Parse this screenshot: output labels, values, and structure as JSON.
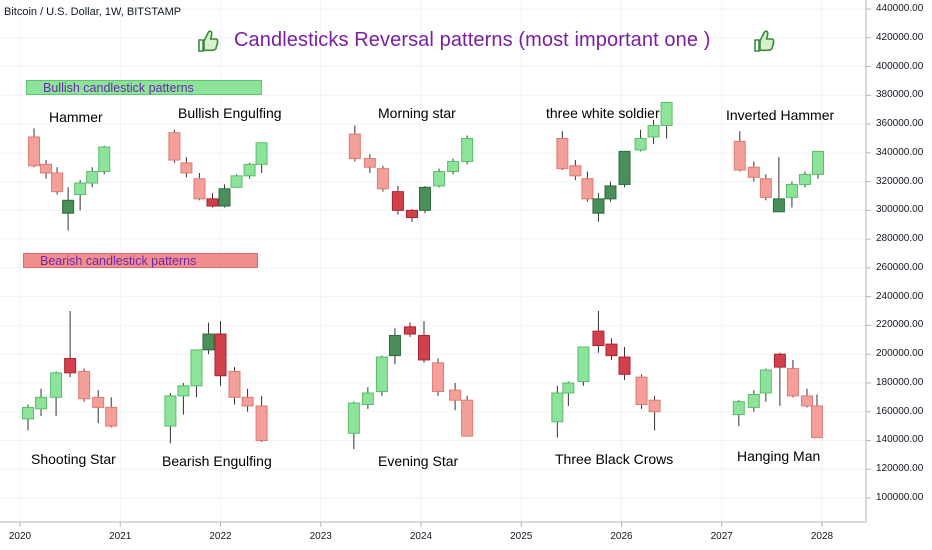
{
  "header": {
    "symbol": "Bitcoin / U.S. Dollar, 1W, BITSTAMP",
    "title": "Candlesticks Reversal patterns (most important one )"
  },
  "icons": {
    "left": "thumbs-up-icon",
    "right": "thumbs-up-icon"
  },
  "colors": {
    "bull_light": "#8ee39a",
    "bull_dark": "#4a8f5a",
    "bear_light": "#f4a09a",
    "bear_dark": "#d2414b",
    "wick": "#333333",
    "title": "#7b1fa2",
    "banner_text": "#6a2bb0"
  },
  "banners": {
    "bullish": "Bullish candlestick patterns",
    "bearish": "Bearish candlestick patterns"
  },
  "chart_data": {
    "type": "candlestick",
    "ylim": [
      82000,
      446000
    ],
    "y_ticks": [
      100000,
      120000,
      140000,
      160000,
      180000,
      200000,
      220000,
      240000,
      260000,
      280000,
      300000,
      320000,
      340000,
      360000,
      380000,
      400000,
      420000,
      440000
    ],
    "y_tick_labels": [
      "100000.00",
      "120000.00",
      "140000.00",
      "160000.00",
      "180000.00",
      "200000.00",
      "220000.00",
      "240000.00",
      "260000.00",
      "280000.00",
      "300000.00",
      "320000.00",
      "340000.00",
      "360000.00",
      "380000.00",
      "400000.00",
      "420000.00",
      "440000.00"
    ],
    "x_ticks": [
      "2020",
      "2021",
      "2022",
      "2023",
      "2024",
      "2025",
      "2026",
      "2027",
      "2028"
    ],
    "x_tick_years": [
      2020.0,
      2021.0,
      2022.0,
      2023.0,
      2024.0,
      2025.0,
      2026.0,
      2027.0,
      2028.0
    ],
    "patterns": [
      {
        "name": "Hammer",
        "group": "bullish",
        "candles": [
          {
            "t": 2020.14,
            "o": 351000,
            "h": 357000,
            "l": 330000,
            "c": 331000,
            "k": "bear_light"
          },
          {
            "t": 2020.26,
            "o": 332000,
            "h": 335000,
            "l": 322000,
            "c": 326000,
            "k": "bear_light"
          },
          {
            "t": 2020.37,
            "o": 326000,
            "h": 330000,
            "l": 311000,
            "c": 313000,
            "k": "bear_light"
          },
          {
            "t": 2020.48,
            "o": 298000,
            "h": 316000,
            "l": 286000,
            "c": 307000,
            "k": "bull_dark"
          },
          {
            "t": 2020.6,
            "o": 311000,
            "h": 321000,
            "l": 300000,
            "c": 319000,
            "k": "bull_light"
          },
          {
            "t": 2020.72,
            "o": 319000,
            "h": 330000,
            "l": 316000,
            "c": 327000,
            "k": "bull_light"
          },
          {
            "t": 2020.84,
            "o": 327000,
            "h": 345000,
            "l": 325000,
            "c": 344000,
            "k": "bull_light"
          }
        ]
      },
      {
        "name": "Bullish Engulfing",
        "group": "bullish",
        "candles": [
          {
            "t": 2021.54,
            "o": 354000,
            "h": 356000,
            "l": 333000,
            "c": 335000,
            "k": "bear_light"
          },
          {
            "t": 2021.66,
            "o": 333000,
            "h": 337000,
            "l": 323000,
            "c": 326000,
            "k": "bear_light"
          },
          {
            "t": 2021.79,
            "o": 322000,
            "h": 326000,
            "l": 307000,
            "c": 308000,
            "k": "bear_light"
          },
          {
            "t": 2021.92,
            "o": 308000,
            "h": 312000,
            "l": 302000,
            "c": 303000,
            "k": "bear_dark"
          },
          {
            "t": 2022.04,
            "o": 303000,
            "h": 318000,
            "l": 302000,
            "c": 315000,
            "k": "bull_dark"
          },
          {
            "t": 2022.16,
            "o": 316000,
            "h": 325000,
            "l": 316000,
            "c": 324000,
            "k": "bull_light"
          },
          {
            "t": 2022.29,
            "o": 324000,
            "h": 333000,
            "l": 322000,
            "c": 332000,
            "k": "bull_light"
          },
          {
            "t": 2022.41,
            "o": 332000,
            "h": 347000,
            "l": 326000,
            "c": 347000,
            "k": "bull_light"
          }
        ]
      },
      {
        "name": "Morning star",
        "group": "bullish",
        "candles": [
          {
            "t": 2023.34,
            "o": 353000,
            "h": 359000,
            "l": 334000,
            "c": 336000,
            "k": "bear_light"
          },
          {
            "t": 2023.49,
            "o": 336000,
            "h": 339000,
            "l": 326000,
            "c": 330000,
            "k": "bear_light"
          },
          {
            "t": 2023.62,
            "o": 329000,
            "h": 331000,
            "l": 313000,
            "c": 315000,
            "k": "bear_light"
          },
          {
            "t": 2023.77,
            "o": 313000,
            "h": 317000,
            "l": 297000,
            "c": 300000,
            "k": "bear_dark"
          },
          {
            "t": 2023.91,
            "o": 300000,
            "h": 301000,
            "l": 292000,
            "c": 295000,
            "k": "bear_dark"
          },
          {
            "t": 2024.04,
            "o": 300000,
            "h": 317000,
            "l": 298000,
            "c": 316000,
            "k": "bull_dark"
          },
          {
            "t": 2024.18,
            "o": 317000,
            "h": 329000,
            "l": 316000,
            "c": 327000,
            "k": "bull_light"
          },
          {
            "t": 2024.32,
            "o": 327000,
            "h": 336000,
            "l": 325000,
            "c": 334000,
            "k": "bull_light"
          },
          {
            "t": 2024.46,
            "o": 334000,
            "h": 352000,
            "l": 332000,
            "c": 350000,
            "k": "bull_light"
          }
        ]
      },
      {
        "name": "three white soldier",
        "group": "bullish",
        "candles": [
          {
            "t": 2025.41,
            "o": 350000,
            "h": 355000,
            "l": 328000,
            "c": 329000,
            "k": "bear_light"
          },
          {
            "t": 2025.54,
            "o": 331000,
            "h": 335000,
            "l": 321000,
            "c": 324000,
            "k": "bear_light"
          },
          {
            "t": 2025.66,
            "o": 322000,
            "h": 327000,
            "l": 306000,
            "c": 308000,
            "k": "bear_light"
          },
          {
            "t": 2025.77,
            "o": 298000,
            "h": 312000,
            "l": 292000,
            "c": 308000,
            "k": "bull_dark"
          },
          {
            "t": 2025.89,
            "o": 308000,
            "h": 320000,
            "l": 306000,
            "c": 317000,
            "k": "bull_dark"
          },
          {
            "t": 2026.03,
            "o": 318000,
            "h": 341000,
            "l": 316000,
            "c": 341000,
            "k": "bull_dark"
          },
          {
            "t": 2026.19,
            "o": 342000,
            "h": 356000,
            "l": 341000,
            "c": 350000,
            "k": "bull_light"
          },
          {
            "t": 2026.32,
            "o": 351000,
            "h": 363000,
            "l": 346000,
            "c": 359000,
            "k": "bull_light"
          },
          {
            "t": 2026.45,
            "o": 359000,
            "h": 375000,
            "l": 350000,
            "c": 375000,
            "k": "bull_light"
          }
        ]
      },
      {
        "name": "Inverted Hammer",
        "group": "bullish",
        "candles": [
          {
            "t": 2027.18,
            "o": 348000,
            "h": 355000,
            "l": 327000,
            "c": 328000,
            "k": "bear_light"
          },
          {
            "t": 2027.32,
            "o": 330000,
            "h": 334000,
            "l": 320000,
            "c": 323000,
            "k": "bear_light"
          },
          {
            "t": 2027.44,
            "o": 322000,
            "h": 325000,
            "l": 307000,
            "c": 309000,
            "k": "bear_light"
          },
          {
            "t": 2027.57,
            "o": 299000,
            "h": 337000,
            "l": 299000,
            "c": 308000,
            "k": "bull_dark"
          },
          {
            "t": 2027.7,
            "o": 309000,
            "h": 320000,
            "l": 302000,
            "c": 318000,
            "k": "bull_light"
          },
          {
            "t": 2027.83,
            "o": 318000,
            "h": 327000,
            "l": 316000,
            "c": 325000,
            "k": "bull_light"
          },
          {
            "t": 2027.96,
            "o": 325000,
            "h": 341000,
            "l": 322000,
            "c": 341000,
            "k": "bull_light"
          }
        ]
      },
      {
        "name": "Shooting Star",
        "group": "bearish",
        "candles": [
          {
            "t": 2020.08,
            "o": 155000,
            "h": 165000,
            "l": 147000,
            "c": 163000,
            "k": "bull_light"
          },
          {
            "t": 2020.21,
            "o": 162000,
            "h": 176000,
            "l": 157000,
            "c": 170000,
            "k": "bull_light"
          },
          {
            "t": 2020.36,
            "o": 170000,
            "h": 188000,
            "l": 157000,
            "c": 187000,
            "k": "bull_light"
          },
          {
            "t": 2020.5,
            "o": 187000,
            "h": 230000,
            "l": 184000,
            "c": 197000,
            "k": "bear_dark"
          },
          {
            "t": 2020.64,
            "o": 188000,
            "h": 190000,
            "l": 167000,
            "c": 169000,
            "k": "bear_light"
          },
          {
            "t": 2020.78,
            "o": 170000,
            "h": 175000,
            "l": 152000,
            "c": 163000,
            "k": "bear_light"
          },
          {
            "t": 2020.91,
            "o": 163000,
            "h": 170000,
            "l": 149000,
            "c": 150000,
            "k": "bear_light"
          }
        ]
      },
      {
        "name": "Bearish Engulfing",
        "group": "bearish",
        "candles": [
          {
            "t": 2021.5,
            "o": 150000,
            "h": 173000,
            "l": 138000,
            "c": 171000,
            "k": "bull_light"
          },
          {
            "t": 2021.63,
            "o": 171000,
            "h": 180000,
            "l": 158000,
            "c": 178000,
            "k": "bull_light"
          },
          {
            "t": 2021.76,
            "o": 178000,
            "h": 203000,
            "l": 170000,
            "c": 203000,
            "k": "bull_light"
          },
          {
            "t": 2021.88,
            "o": 203000,
            "h": 222000,
            "l": 200000,
            "c": 214000,
            "k": "bull_dark"
          },
          {
            "t": 2022.0,
            "o": 214000,
            "h": 223000,
            "l": 178000,
            "c": 185000,
            "k": "bear_dark"
          },
          {
            "t": 2022.14,
            "o": 188000,
            "h": 191000,
            "l": 165000,
            "c": 170000,
            "k": "bear_light"
          },
          {
            "t": 2022.27,
            "o": 170000,
            "h": 176000,
            "l": 160000,
            "c": 164000,
            "k": "bear_light"
          },
          {
            "t": 2022.41,
            "o": 164000,
            "h": 171000,
            "l": 139000,
            "c": 140000,
            "k": "bear_light"
          }
        ]
      },
      {
        "name": "Evening Star",
        "group": "bearish",
        "candles": [
          {
            "t": 2023.33,
            "o": 145000,
            "h": 167000,
            "l": 134000,
            "c": 166000,
            "k": "bull_light"
          },
          {
            "t": 2023.47,
            "o": 165000,
            "h": 177000,
            "l": 162000,
            "c": 173000,
            "k": "bull_light"
          },
          {
            "t": 2023.61,
            "o": 174000,
            "h": 199000,
            "l": 171000,
            "c": 198000,
            "k": "bull_light"
          },
          {
            "t": 2023.74,
            "o": 199000,
            "h": 218000,
            "l": 193000,
            "c": 213000,
            "k": "bull_dark"
          },
          {
            "t": 2023.89,
            "o": 214000,
            "h": 222000,
            "l": 212000,
            "c": 219000,
            "k": "bear_dark"
          },
          {
            "t": 2024.03,
            "o": 213000,
            "h": 223000,
            "l": 194000,
            "c": 196000,
            "k": "bear_dark"
          },
          {
            "t": 2024.17,
            "o": 194000,
            "h": 197000,
            "l": 171000,
            "c": 174000,
            "k": "bear_light"
          },
          {
            "t": 2024.34,
            "o": 175000,
            "h": 180000,
            "l": 161000,
            "c": 168000,
            "k": "bear_light"
          },
          {
            "t": 2024.46,
            "o": 168000,
            "h": 171000,
            "l": 143000,
            "c": 143000,
            "k": "bear_light"
          }
        ]
      },
      {
        "name": "Three Black Crows",
        "group": "bearish",
        "candles": [
          {
            "t": 2025.36,
            "o": 153000,
            "h": 178000,
            "l": 142000,
            "c": 173000,
            "k": "bull_light"
          },
          {
            "t": 2025.47,
            "o": 173000,
            "h": 181000,
            "l": 164000,
            "c": 180000,
            "k": "bull_light"
          },
          {
            "t": 2025.62,
            "o": 181000,
            "h": 205000,
            "l": 178000,
            "c": 205000,
            "k": "bull_light"
          },
          {
            "t": 2025.77,
            "o": 216000,
            "h": 230000,
            "l": 201000,
            "c": 206000,
            "k": "bear_dark"
          },
          {
            "t": 2025.9,
            "o": 207000,
            "h": 211000,
            "l": 196000,
            "c": 199000,
            "k": "bear_dark"
          },
          {
            "t": 2026.03,
            "o": 198000,
            "h": 205000,
            "l": 182000,
            "c": 186000,
            "k": "bear_dark"
          },
          {
            "t": 2026.2,
            "o": 184000,
            "h": 186000,
            "l": 162000,
            "c": 165000,
            "k": "bear_light"
          },
          {
            "t": 2026.33,
            "o": 168000,
            "h": 171000,
            "l": 147000,
            "c": 160000,
            "k": "bear_light"
          }
        ]
      },
      {
        "name": "Hanging Man",
        "group": "bearish",
        "candles": [
          {
            "t": 2027.17,
            "o": 158000,
            "h": 168000,
            "l": 150000,
            "c": 167000,
            "k": "bull_light"
          },
          {
            "t": 2027.32,
            "o": 163000,
            "h": 175000,
            "l": 160000,
            "c": 172000,
            "k": "bull_light"
          },
          {
            "t": 2027.44,
            "o": 173000,
            "h": 190000,
            "l": 167000,
            "c": 189000,
            "k": "bull_light"
          },
          {
            "t": 2027.58,
            "o": 200000,
            "h": 201000,
            "l": 164000,
            "c": 191000,
            "k": "bear_dark"
          },
          {
            "t": 2027.71,
            "o": 190000,
            "h": 196000,
            "l": 170000,
            "c": 171000,
            "k": "bear_light"
          },
          {
            "t": 2027.85,
            "o": 171000,
            "h": 176000,
            "l": 163000,
            "c": 164000,
            "k": "bear_light"
          },
          {
            "t": 2027.95,
            "o": 164000,
            "h": 172000,
            "l": 142000,
            "c": 142000,
            "k": "bear_light"
          }
        ]
      }
    ]
  }
}
